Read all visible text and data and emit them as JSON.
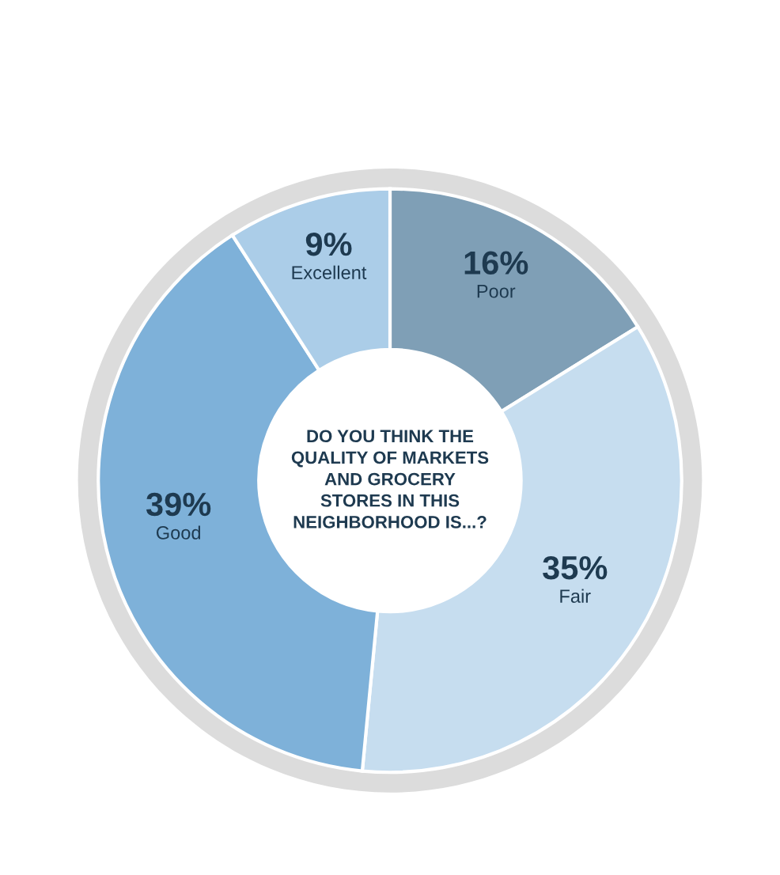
{
  "chart_data": {
    "type": "donut",
    "categories": [
      "Poor",
      "Fair",
      "Good",
      "Excellent"
    ],
    "values": [
      16,
      35,
      39,
      9
    ],
    "colors": [
      "#7f9fb6",
      "#c6ddef",
      "#7eb1d9",
      "#abcde8"
    ],
    "value_labels": [
      "16%",
      "35%",
      "39%",
      "9%"
    ],
    "legend": false,
    "annotations": [
      "DO YOU THINK THE\nQUALITY OF MARKETS\nAND GROCERY\nSTORES IN THIS\nNEIGHBORHOOD IS...?"
    ]
  }
}
